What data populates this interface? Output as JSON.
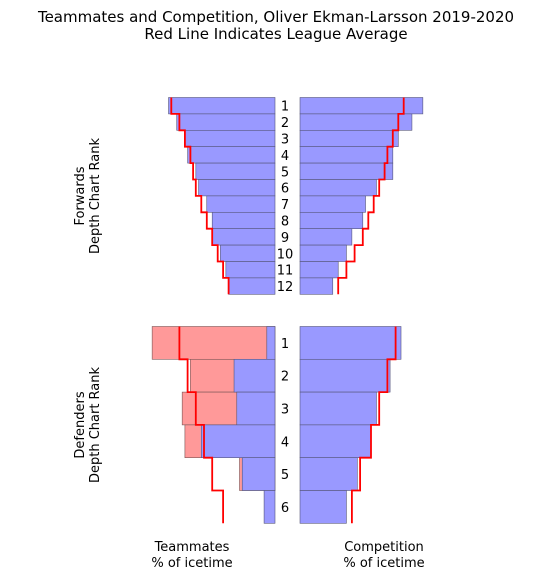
{
  "title": "Teammates and Competition, Oliver Ekman-Larsson 2019-2020",
  "subtitle": "Red Line Indicates League Average",
  "colors": {
    "bar_fill": "#9999ff",
    "bar_edge": "#55557a",
    "teammate_def_fill": "#ff9999",
    "teammate_def_edge": "#7a5555",
    "average_line": "#ff0000"
  },
  "chart_data": {
    "type": "bar",
    "description_of_encoding": "Mirrored horizontal bar chart; left panels show teammates % of icetime (bars extend leftward), right panels show competition % of icetime. Red step lines are league averages.",
    "forwards": {
      "ylabel": "Forwards\nDepth Chart Rank",
      "ranks": [
        "1",
        "2",
        "3",
        "4",
        "5",
        "6",
        "7",
        "8",
        "9",
        "10",
        "11",
        "12"
      ],
      "teammates": [
        39,
        36,
        33,
        32,
        29,
        28,
        25,
        23,
        23,
        20,
        18,
        17
      ],
      "competition": [
        45,
        41,
        36,
        34,
        34,
        28,
        24,
        23,
        19,
        17,
        14,
        12
      ],
      "teammates_avg": [
        38,
        35,
        33,
        31,
        30,
        29,
        27,
        25,
        23,
        21,
        19,
        17
      ],
      "competition_avg": [
        38,
        36,
        34,
        32,
        31,
        29,
        27,
        25,
        23,
        20,
        17,
        14
      ]
    },
    "defenders": {
      "ylabel": "Defenders\nDepth Chart Rank",
      "ranks": [
        "1",
        "2",
        "3",
        "4",
        "5",
        "6"
      ],
      "teammates": [
        3,
        15,
        14,
        27,
        12,
        4
      ],
      "teammates_defense_pairs": [
        45,
        31,
        34,
        33,
        13,
        0
      ],
      "competition": [
        37,
        33,
        28,
        26,
        21,
        17
      ],
      "teammates_avg": [
        35,
        32,
        29,
        26,
        23,
        19
      ],
      "competition_avg": [
        35,
        32,
        29,
        26,
        22,
        19
      ]
    },
    "xlabel_left": "Teammates\n% of icetime",
    "xlabel_right": "Competition\n% of icetime"
  }
}
